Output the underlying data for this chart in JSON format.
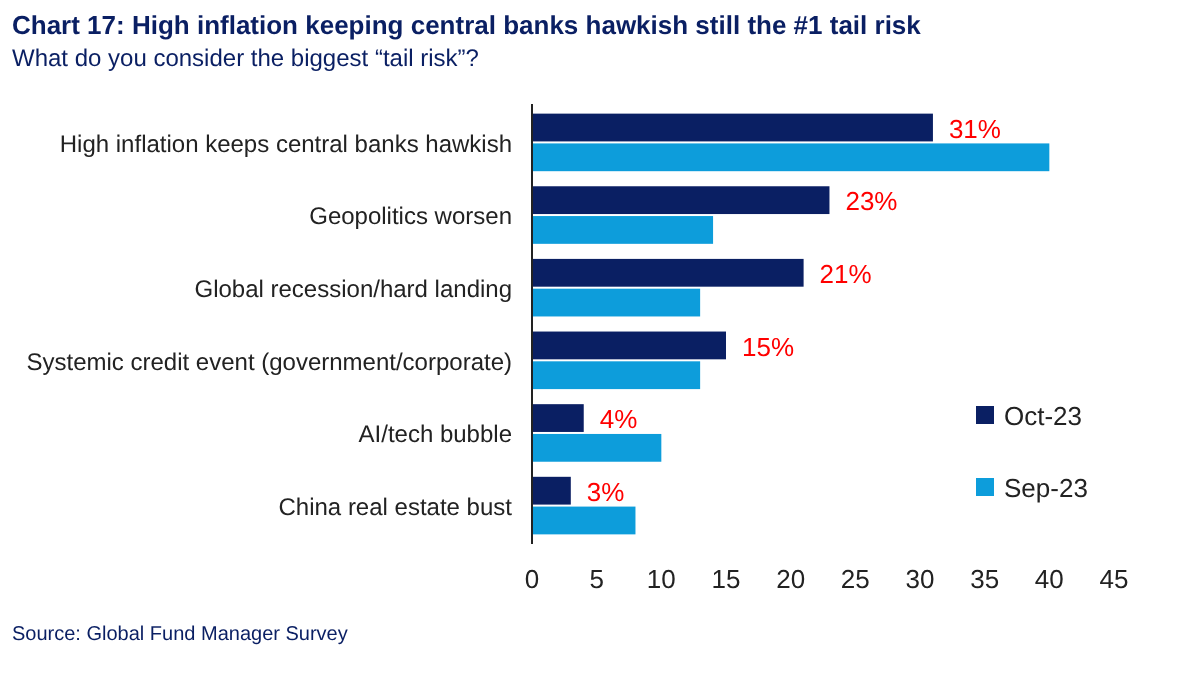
{
  "chart_data": {
    "type": "bar",
    "orientation": "horizontal",
    "title": "Chart 17: High inflation keeping central banks hawkish still the #1 tail risk",
    "subtitle": "What do you consider the biggest “tail risk”?",
    "categories": [
      "High inflation keeps central banks hawkish",
      "Geopolitics worsen",
      "Global recession/hard landing",
      "Systemic credit event (government/corporate)",
      "AI/tech bubble",
      "China real estate bust"
    ],
    "series": [
      {
        "name": "Oct-23",
        "color": "#0a1f63",
        "values": [
          31,
          23,
          21,
          15,
          4,
          3
        ],
        "value_labels": [
          "31%",
          "23%",
          "21%",
          "15%",
          "4%",
          "3%"
        ]
      },
      {
        "name": "Sep-23",
        "color": "#0d9ddb",
        "values": [
          40,
          14,
          13,
          13,
          10,
          8
        ]
      }
    ],
    "xlim": [
      0,
      45
    ],
    "xticks": [
      0,
      5,
      10,
      15,
      20,
      25,
      30,
      35,
      40,
      45
    ],
    "grid": false,
    "legend": "right",
    "annotations": [
      "Source: Global Fund Manager Survey"
    ]
  }
}
